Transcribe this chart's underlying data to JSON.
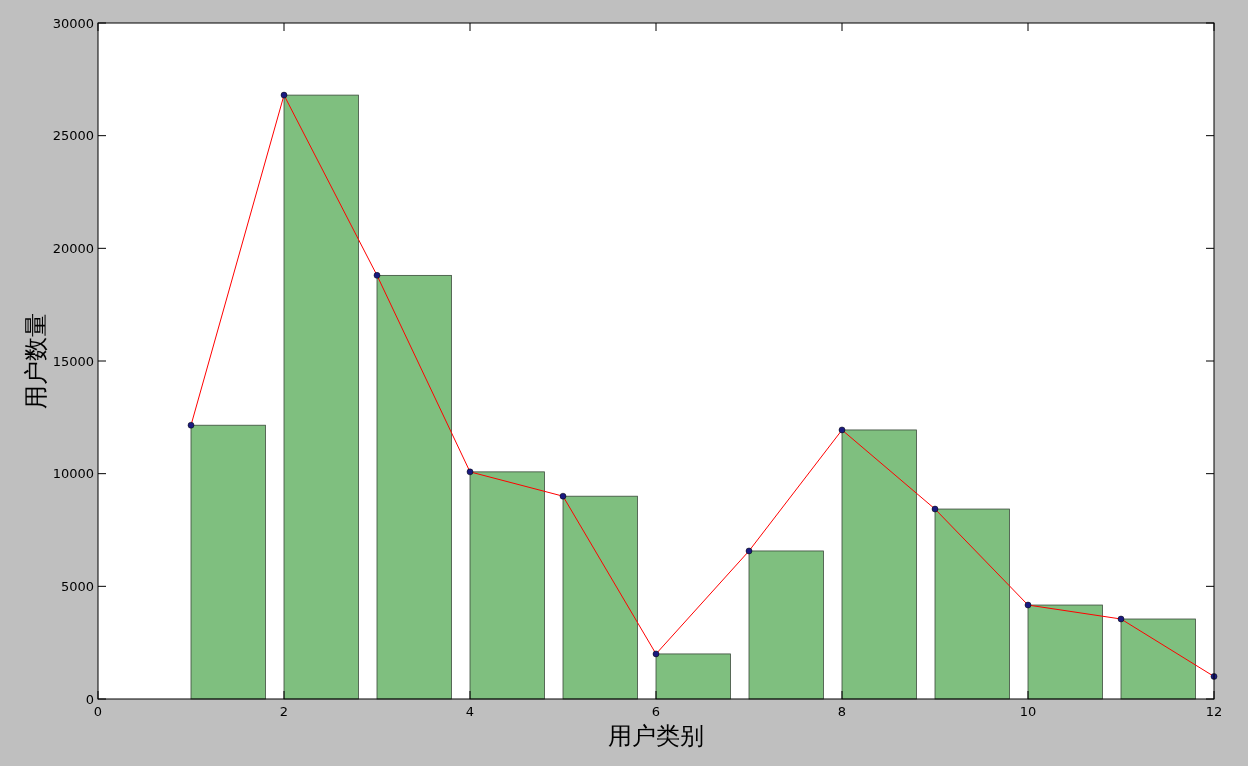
{
  "chart_data": {
    "type": "bar",
    "xlabel": "用户类别",
    "ylabel": "用户数量",
    "xlim": [
      0,
      12
    ],
    "xticks": [
      0,
      2,
      4,
      6,
      8,
      10,
      12
    ],
    "ylim": [
      0,
      30000
    ],
    "yticks": [
      0,
      5000,
      10000,
      15000,
      20000,
      25000,
      30000
    ],
    "grid": false,
    "series": [
      {
        "color": "#7fbf7f",
        "x": [
          1.4,
          2.4,
          3.4,
          4.4,
          5.4,
          6.4,
          7.4,
          8.4,
          9.4,
          10.4,
          11.4
        ],
        "values": [
          12150,
          26800,
          18800,
          10080,
          9000,
          2000,
          6570,
          11940,
          8430,
          4170,
          3550
        ]
      },
      {
        "type": "line",
        "color": "#ff0000",
        "marker": "circle",
        "x": [
          1,
          2,
          3,
          4,
          5,
          6,
          7,
          8,
          9,
          10,
          11,
          12
        ],
        "values": [
          12150,
          26800,
          18800,
          10080,
          9000,
          2000,
          6570,
          11940,
          8430,
          4170,
          3550,
          1000
        ]
      }
    ]
  }
}
